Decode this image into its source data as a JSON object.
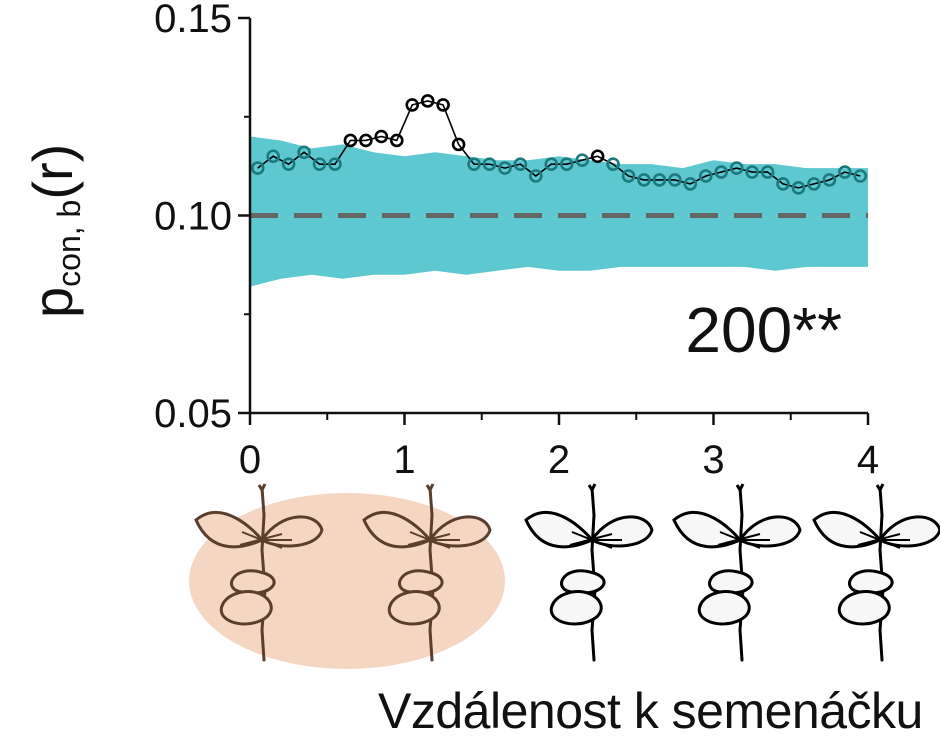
{
  "chart_data": {
    "type": "line",
    "ylabel_main": "p",
    "ylabel_sub": "con, b",
    "ylabel_arg": "(r)",
    "xlabel": "Vzdálenost k semenáčku",
    "annotation": "200**",
    "xlim": [
      0,
      4
    ],
    "ylim": [
      0.05,
      0.15
    ],
    "xticks": [
      0,
      1,
      2,
      3,
      4
    ],
    "xtick_labels": [
      "0",
      "1",
      "2",
      "3",
      "4"
    ],
    "yticks": [
      0.05,
      0.1,
      0.15
    ],
    "ytick_labels": [
      "0.05",
      "0.10",
      "0.15"
    ],
    "series": [
      {
        "x": [
          0.05,
          0.15,
          0.25,
          0.35,
          0.45,
          0.55,
          0.65,
          0.75,
          0.85,
          0.95,
          1.05,
          1.15,
          1.25,
          1.35,
          1.45,
          1.55,
          1.65,
          1.75,
          1.85,
          1.95,
          2.05,
          2.15,
          2.25,
          2.35,
          2.45,
          2.55,
          2.65,
          2.75,
          2.85,
          2.95,
          3.05,
          3.15,
          3.25,
          3.35,
          3.45,
          3.55,
          3.65,
          3.75,
          3.85,
          3.95
        ],
        "values": [
          0.112,
          0.115,
          0.113,
          0.116,
          0.113,
          0.113,
          0.119,
          0.119,
          0.12,
          0.119,
          0.128,
          0.129,
          0.128,
          0.118,
          0.113,
          0.113,
          0.112,
          0.113,
          0.11,
          0.113,
          0.113,
          0.114,
          0.115,
          0.113,
          0.11,
          0.109,
          0.109,
          0.109,
          0.108,
          0.11,
          0.111,
          0.112,
          0.111,
          0.111,
          0.108,
          0.107,
          0.108,
          0.109,
          0.111,
          0.11
        ],
        "color": "#000000"
      }
    ],
    "envelope": {
      "x": [
        0.0,
        0.2,
        0.4,
        0.6,
        0.8,
        1.0,
        1.2,
        1.4,
        1.6,
        1.8,
        2.0,
        2.2,
        2.4,
        2.6,
        2.8,
        3.0,
        3.2,
        3.4,
        3.6,
        3.8,
        4.0
      ],
      "upper": [
        0.12,
        0.119,
        0.117,
        0.118,
        0.116,
        0.115,
        0.116,
        0.115,
        0.114,
        0.114,
        0.115,
        0.114,
        0.113,
        0.113,
        0.112,
        0.114,
        0.113,
        0.113,
        0.112,
        0.112,
        0.112
      ],
      "lower": [
        0.082,
        0.084,
        0.085,
        0.084,
        0.085,
        0.085,
        0.086,
        0.085,
        0.086,
        0.087,
        0.086,
        0.086,
        0.087,
        0.087,
        0.087,
        0.087,
        0.087,
        0.086,
        0.087,
        0.087,
        0.087
      ],
      "color": "#5ec8d0"
    },
    "null_line": {
      "value": 0.1,
      "color": "#666666",
      "style": "dashed"
    },
    "marker_color_inside": "#1d7a7c",
    "marker_color_outside": "#000000",
    "highlight_region": {
      "x": [
        0,
        1.2
      ],
      "color": "#f5d6c2"
    }
  }
}
